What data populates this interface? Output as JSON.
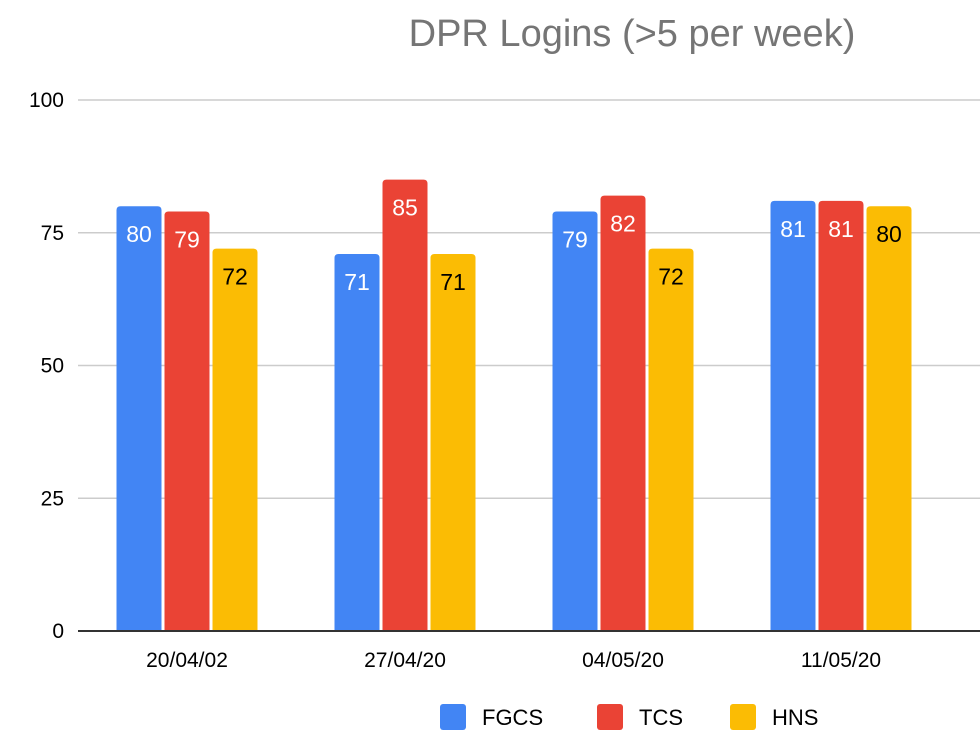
{
  "chart_data": {
    "type": "bar",
    "title": "DPR Logins (>5  per week)",
    "xlabel": "",
    "ylabel": "",
    "categories": [
      "20/04/02",
      "27/04/20",
      "04/05/20",
      "11/05/20"
    ],
    "series": [
      {
        "name": "FGCS",
        "color": "#4285f4",
        "label_color": "#ffffff",
        "values": [
          80,
          71,
          79,
          81
        ]
      },
      {
        "name": "TCS",
        "color": "#ea4335",
        "label_color": "#ffffff",
        "values": [
          79,
          85,
          82,
          81
        ]
      },
      {
        "name": "HNS",
        "color": "#fbbc04",
        "label_color": "#000000",
        "values": [
          72,
          71,
          72,
          80
        ]
      }
    ],
    "ylim": [
      0,
      100
    ],
    "yticks": [
      0,
      25,
      50,
      75,
      100
    ],
    "grid": true,
    "legend": "bottom",
    "data_labels": true
  }
}
